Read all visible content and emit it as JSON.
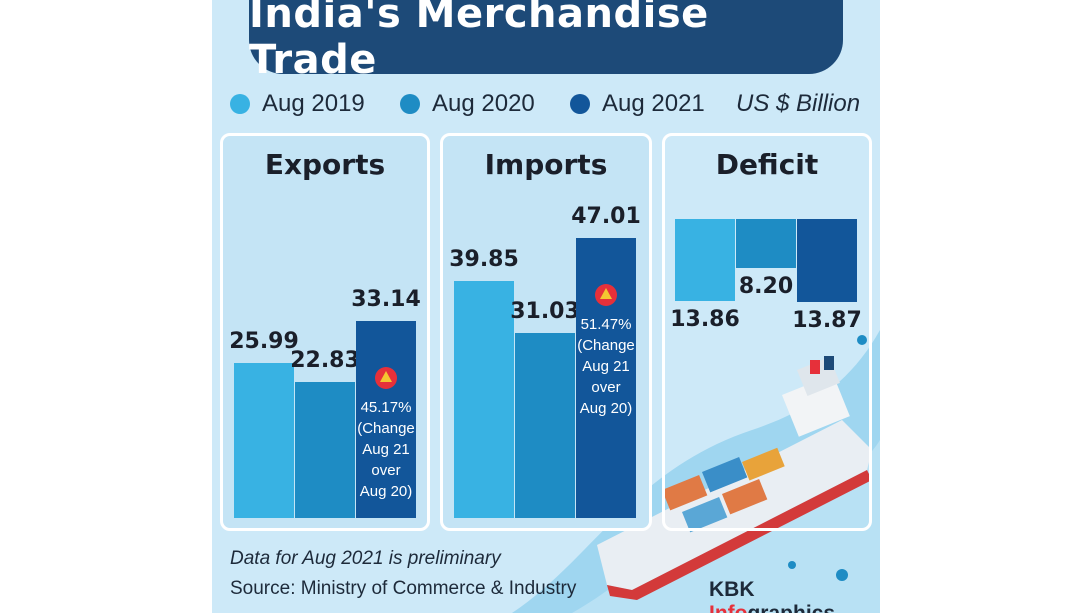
{
  "title": "India's Merchandise Trade",
  "unit": "US $ Billion",
  "legend": [
    {
      "label": "Aug 2019",
      "color": "#38b2e3"
    },
    {
      "label": "Aug 2020",
      "color": "#1e8cc4"
    },
    {
      "label": "Aug 2021",
      "color": "#12569a"
    }
  ],
  "chart_data": [
    {
      "type": "bar",
      "title": "Exports",
      "categories": [
        "Aug 2019",
        "Aug 2020",
        "Aug 2021"
      ],
      "values": [
        25.99,
        22.83,
        33.14
      ],
      "labels": [
        "25.99",
        "22.83",
        "33.14"
      ],
      "change": {
        "pct": "45.17%",
        "note_lines": [
          "(Change",
          "Aug 21",
          "over",
          "Aug 20)"
        ]
      }
    },
    {
      "type": "bar",
      "title": "Imports",
      "categories": [
        "Aug 2019",
        "Aug 2020",
        "Aug 2021"
      ],
      "values": [
        39.85,
        31.03,
        47.01
      ],
      "labels": [
        "39.85",
        "31.03",
        "47.01"
      ],
      "change": {
        "pct": "51.47%",
        "note_lines": [
          "(Change",
          "Aug 21",
          "over",
          "Aug 20)"
        ]
      }
    },
    {
      "type": "bar",
      "title": "Deficit",
      "categories": [
        "Aug 2019",
        "Aug 2020",
        "Aug 2021"
      ],
      "values": [
        13.86,
        8.2,
        13.87
      ],
      "labels": [
        "13.86",
        "8.20",
        "13.87"
      ],
      "orientation": "downward"
    }
  ],
  "footer": {
    "note": "Data for Aug 2021 is preliminary",
    "source": "Source: Ministry of Commerce & Industry",
    "credit_prefix": "KBK ",
    "credit_accent": "Info",
    "credit_suffix": "graphics"
  }
}
